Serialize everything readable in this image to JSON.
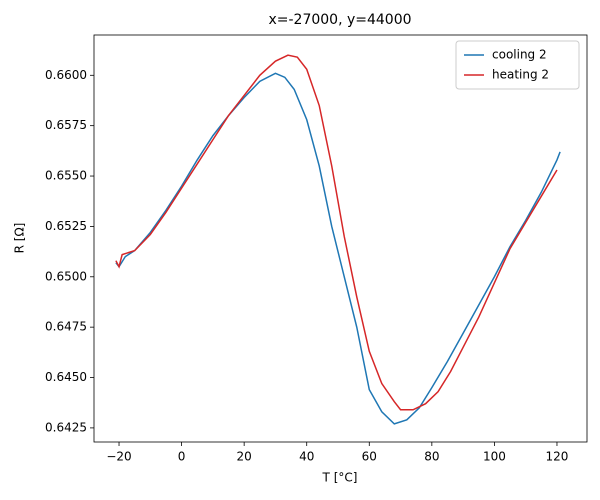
{
  "chart_data": {
    "type": "line",
    "title": "x=-27000, y=44000",
    "x_label": "T [°C]",
    "y_label": "R [Ω]",
    "xlim": [
      -28,
      129.6
    ],
    "ylim": [
      0.6418,
      0.662
    ],
    "xticks": [
      {
        "value": -20,
        "label": "−20"
      },
      0,
      20,
      40,
      60,
      80,
      100,
      120
    ],
    "yticks": [
      0.6425,
      {
        "value": 0.645,
        "label": "0.6450"
      },
      0.6475,
      {
        "value": 0.65,
        "label": "0.6500"
      },
      0.6525,
      {
        "value": 0.655,
        "label": "0.6550"
      },
      0.6575,
      {
        "value": 0.66,
        "label": "0.6600"
      }
    ],
    "legend": "upper right",
    "series": [
      {
        "name": "cooling 2",
        "color": "#1f77b4",
        "x": [
          -21,
          -20,
          -18,
          -15,
          -10,
          -5,
          0,
          5,
          10,
          15,
          20,
          25,
          30,
          33,
          36,
          40,
          44,
          48,
          52,
          56,
          60,
          64,
          68,
          72,
          76,
          80,
          85,
          90,
          95,
          100,
          105,
          110,
          115,
          120,
          121
        ],
        "values": [
          0.6507,
          0.6505,
          0.651,
          0.6513,
          0.6522,
          0.6533,
          0.6545,
          0.6558,
          0.657,
          0.658,
          0.6589,
          0.6597,
          0.6601,
          0.6599,
          0.6593,
          0.6578,
          0.6555,
          0.6525,
          0.65,
          0.6475,
          0.6444,
          0.6433,
          0.6427,
          0.6429,
          0.6435,
          0.6445,
          0.6458,
          0.6472,
          0.6486,
          0.65,
          0.6515,
          0.6528,
          0.6542,
          0.6558,
          0.6562
        ]
      },
      {
        "name": "heating 2",
        "color": "#d62728",
        "x": [
          -21,
          -20,
          -19,
          -17,
          -15,
          -10,
          -5,
          0,
          5,
          10,
          15,
          20,
          25,
          30,
          34,
          37,
          40,
          44,
          48,
          52,
          56,
          60,
          64,
          68,
          70,
          74,
          78,
          82,
          86,
          90,
          95,
          100,
          105,
          110,
          115,
          120
        ],
        "values": [
          0.6508,
          0.6505,
          0.6511,
          0.6512,
          0.6513,
          0.6521,
          0.6532,
          0.6544,
          0.6556,
          0.6568,
          0.658,
          0.659,
          0.66,
          0.6607,
          0.661,
          0.6609,
          0.6603,
          0.6585,
          0.6555,
          0.652,
          0.649,
          0.6463,
          0.6447,
          0.6438,
          0.6434,
          0.6434,
          0.6437,
          0.6443,
          0.6453,
          0.6465,
          0.648,
          0.6497,
          0.6514,
          0.6527,
          0.654,
          0.6553
        ]
      }
    ]
  }
}
